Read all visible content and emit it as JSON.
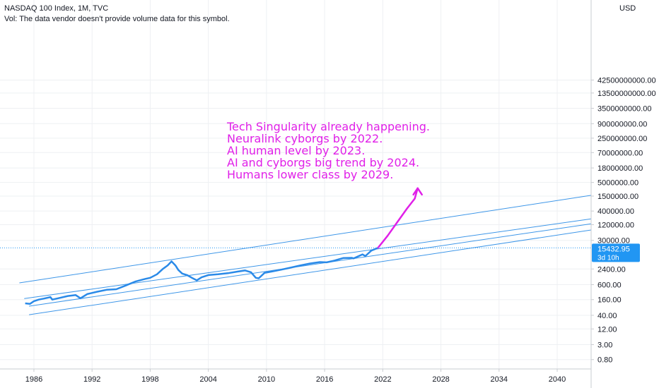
{
  "header": {
    "title": "NASDAQ 100 Index, 1M, TVC",
    "volume_note": "Vol: The data vendor doesn't provide volume data for this symbol."
  },
  "price_badge": {
    "value": "15432.95",
    "countdown": "3d 10h"
  },
  "colors": {
    "series": "#2a8ae8",
    "channel": "#3d96e8",
    "annotation": "#e020e8",
    "badge": "#2196f3",
    "grid": "#eef0f3"
  },
  "chart_data": {
    "type": "line",
    "title": "NASDAQ 100 Index, 1M, TVC",
    "y_scale": "log",
    "y_unit": "USD",
    "xlim": [
      1982.5,
      2043.5
    ],
    "ylim": [
      0.35,
      50000000000000
    ],
    "x_ticks": [
      1986,
      1992,
      1998,
      2004,
      2010,
      2016,
      2022,
      2028,
      2034,
      2040
    ],
    "y_ticks": [
      "42500000000.00",
      "13500000000.00",
      "3500000000.00",
      "900000000.00",
      "250000000.00",
      "70000000.00",
      "18000000.00",
      "5000000.00",
      "1500000.00",
      "400000.00",
      "120000.00",
      "30000.00",
      "2400.00",
      "600.00",
      "160.00",
      "40.00",
      "12.00",
      "3.00",
      "0.80"
    ],
    "series": [
      {
        "values": [
          [
            1985.1,
            115
          ],
          [
            1985.6,
            110
          ],
          [
            1986.0,
            140
          ],
          [
            1986.5,
            160
          ],
          [
            1987.0,
            175
          ],
          [
            1987.7,
            200
          ],
          [
            1987.9,
            160
          ],
          [
            1988.5,
            180
          ],
          [
            1989.5,
            220
          ],
          [
            1990.3,
            240
          ],
          [
            1990.8,
            180
          ],
          [
            1991.5,
            260
          ],
          [
            1992.5,
            320
          ],
          [
            1993.5,
            380
          ],
          [
            1994.5,
            400
          ],
          [
            1995.5,
            560
          ],
          [
            1996.5,
            800
          ],
          [
            1997.5,
            1000
          ],
          [
            1998.0,
            1100
          ],
          [
            1998.7,
            1500
          ],
          [
            1999.3,
            2400
          ],
          [
            1999.8,
            3300
          ],
          [
            2000.2,
            4700
          ],
          [
            2000.6,
            3300
          ],
          [
            2000.9,
            2200
          ],
          [
            2001.3,
            1600
          ],
          [
            2001.8,
            1400
          ],
          [
            2002.3,
            1100
          ],
          [
            2002.8,
            880
          ],
          [
            2003.3,
            1150
          ],
          [
            2004.0,
            1400
          ],
          [
            2005.0,
            1500
          ],
          [
            2006.0,
            1650
          ],
          [
            2007.0,
            1900
          ],
          [
            2007.8,
            2100
          ],
          [
            2008.4,
            1800
          ],
          [
            2008.9,
            1100
          ],
          [
            2009.2,
            1050
          ],
          [
            2009.8,
            1700
          ],
          [
            2010.5,
            1900
          ],
          [
            2011.5,
            2250
          ],
          [
            2012.5,
            2700
          ],
          [
            2013.5,
            3300
          ],
          [
            2014.5,
            3900
          ],
          [
            2015.5,
            4400
          ],
          [
            2016.2,
            4300
          ],
          [
            2017.0,
            5000
          ],
          [
            2017.9,
            6300
          ],
          [
            2018.8,
            6400
          ],
          [
            2019.0,
            6100
          ],
          [
            2019.9,
            8700
          ],
          [
            2020.2,
            7500
          ],
          [
            2020.8,
            12000
          ],
          [
            2021.5,
            15432.95
          ]
        ]
      }
    ],
    "channel_lines": [
      {
        "from": [
          1984.5,
          700
        ],
        "to": [
          2043.5,
          1600000
        ]
      },
      {
        "from": [
          1985.0,
          175
        ],
        "to": [
          2043.5,
          200000
        ]
      },
      {
        "from": [
          1985.5,
          90
        ],
        "to": [
          2043.5,
          130000
        ]
      },
      {
        "from": [
          1985.5,
          42
        ],
        "to": [
          2043.5,
          75000
        ]
      }
    ],
    "projection": [
      [
        2021.5,
        15432.95
      ],
      [
        2022.5,
        45000
      ],
      [
        2023.5,
        150000
      ],
      [
        2024.5,
        500000
      ],
      [
        2025.3,
        1200000
      ],
      [
        2025.6,
        3000000
      ]
    ],
    "annotation": {
      "lines": [
        "Tech Singularity already happening.",
        "Neuralink cyborgs by 2022.",
        "AI human level by 2023.",
        "AI and cyborgs big trend by 2024.",
        "Humans lower class by 2029."
      ]
    }
  }
}
